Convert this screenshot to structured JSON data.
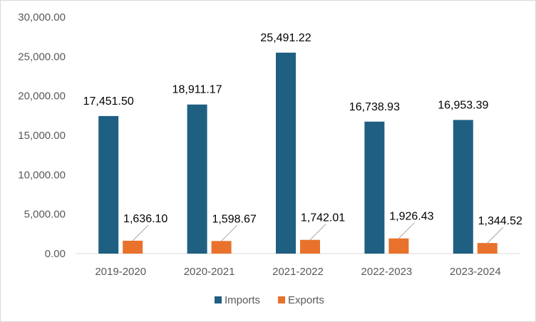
{
  "chart_data": {
    "type": "bar",
    "categories": [
      "2019-2020",
      "2020-2021",
      "2021-2022",
      "2022-2023",
      "2023-2024"
    ],
    "series": [
      {
        "name": "Imports",
        "color": "#1f5f82",
        "values": [
          17451.5,
          18911.17,
          25491.22,
          16738.93,
          16953.39
        ],
        "labels": [
          "17,451.50",
          "18,911.17",
          "25,491.22",
          "16,738.93",
          "16,953.39"
        ]
      },
      {
        "name": "Exports",
        "color": "#e8722c",
        "values": [
          1636.1,
          1598.67,
          1742.01,
          1926.43,
          1344.52
        ],
        "labels": [
          "1,636.10",
          "1,598.67",
          "1,742.01",
          "1,926.43",
          "1,344.52"
        ]
      }
    ],
    "yticks": [
      0,
      5000,
      10000,
      15000,
      20000,
      25000,
      30000
    ],
    "ytick_labels": [
      "0.00",
      "5,000.00",
      "10,000.00",
      "15,000.00",
      "20,000.00",
      "25,000.00",
      "30,000.00"
    ],
    "ylim": [
      0,
      30000
    ],
    "grid": false,
    "legend": "bottom-center",
    "leader_line_color": "#a6a6a6",
    "axis_color": "#d9d9d9"
  }
}
